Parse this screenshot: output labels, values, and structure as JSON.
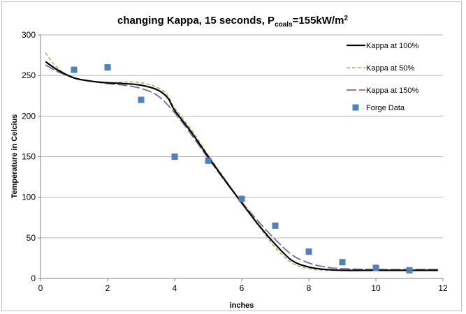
{
  "chart_data": {
    "type": "line",
    "title": {
      "main": "changing Kappa, 15 seconds, P",
      "sub": "coals",
      "suffix": "=155kW/m",
      "sup": "2"
    },
    "xlabel": "inches",
    "ylabel": "Temperature in Celcius",
    "xlim": [
      0,
      12
    ],
    "ylim": [
      0,
      300
    ],
    "xticks": [
      0,
      2,
      4,
      6,
      8,
      10,
      12
    ],
    "yticks": [
      0,
      50,
      100,
      150,
      200,
      250,
      300
    ],
    "grid": "horizontal",
    "legend_position": "right",
    "series": [
      {
        "name": "Kappa at 100%",
        "kind": "line",
        "style": "solid",
        "color": "#000000",
        "x": [
          0.15,
          0.5,
          1.0,
          1.5,
          2.0,
          2.5,
          3.0,
          3.5,
          3.8,
          4.0,
          4.5,
          5.0,
          5.5,
          6.0,
          6.5,
          7.0,
          7.5,
          8.0,
          8.5,
          9.0,
          10.0,
          11.0,
          11.85
        ],
        "y": [
          267,
          257,
          247,
          243,
          241,
          240,
          238,
          232,
          222,
          207,
          180,
          150,
          121,
          93,
          66,
          42,
          22,
          14,
          11,
          10,
          10,
          10,
          10
        ]
      },
      {
        "name": "Kappa at 50%",
        "kind": "line",
        "style": "dashed",
        "color": "#9bbb59",
        "x": [
          0.15,
          0.4,
          0.7,
          1.0,
          1.5,
          2.0,
          2.5,
          3.0,
          3.5,
          3.8,
          4.0,
          4.5,
          5.0,
          5.5,
          6.0,
          6.5,
          7.0,
          7.5,
          8.0,
          8.5,
          9.0,
          10.0,
          11.0,
          11.85
        ],
        "y": [
          278,
          264,
          253,
          247,
          243,
          241,
          242,
          241,
          235,
          225,
          210,
          183,
          152,
          122,
          93,
          65,
          38,
          19,
          12,
          10,
          10,
          10,
          10,
          10
        ]
      },
      {
        "name": "Kappa at 150%",
        "kind": "line",
        "style": "longdash",
        "color": "#8064a2",
        "x": [
          0.15,
          0.5,
          1.0,
          1.5,
          2.0,
          2.5,
          3.0,
          3.5,
          4.0,
          4.5,
          5.0,
          5.5,
          6.0,
          6.5,
          7.0,
          7.5,
          8.0,
          8.5,
          9.0,
          10.0,
          11.0,
          11.85
        ],
        "y": [
          263,
          255,
          247,
          243,
          240,
          238,
          234,
          225,
          204,
          177,
          148,
          120,
          94,
          70,
          48,
          29,
          19,
          14,
          12,
          11,
          11,
          11
        ]
      },
      {
        "name": "Forge Data",
        "kind": "scatter",
        "marker": "square",
        "color": "#4f81bd",
        "x": [
          1,
          2,
          3,
          4,
          5,
          6,
          7,
          8,
          9,
          10,
          11
        ],
        "y": [
          257,
          260,
          220,
          150,
          145,
          98,
          65,
          33,
          20,
          13,
          10
        ]
      }
    ]
  }
}
